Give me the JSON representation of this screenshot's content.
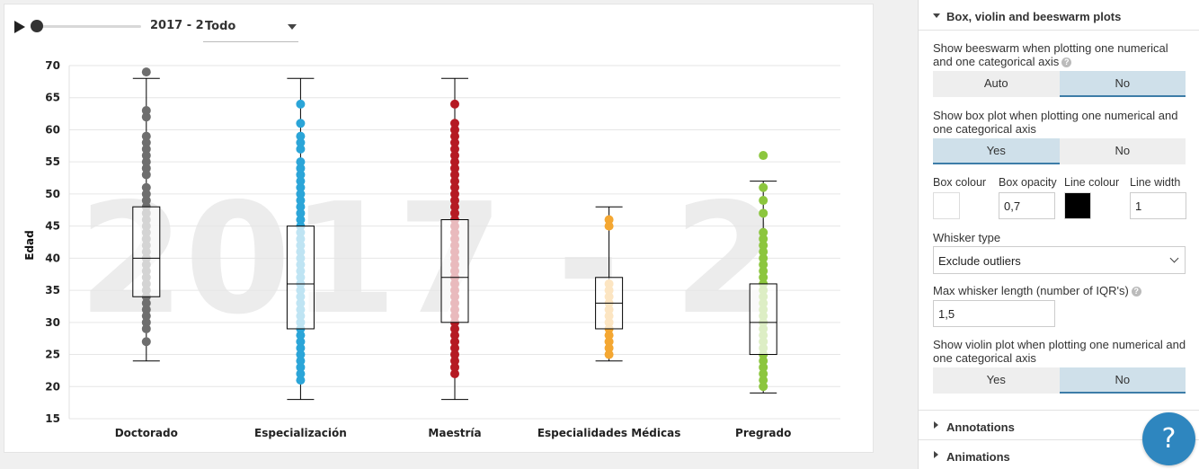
{
  "timeline": {
    "period": "2017 - 2",
    "filter_value": "Todo"
  },
  "watermark": "2017 - 2",
  "chart_data": {
    "type": "box",
    "ylabel": "Edad",
    "ylim": [
      15,
      70
    ],
    "yticks": [
      15,
      20,
      25,
      30,
      35,
      40,
      45,
      50,
      55,
      60,
      65,
      70
    ],
    "categories": [
      "Doctorado",
      "Especialización",
      "Maestría",
      "Especialidades Médicas",
      "Pregrado"
    ],
    "colors": [
      "#6e6e6e",
      "#2ba5d8",
      "#b51a23",
      "#f4a732",
      "#8cc63e"
    ],
    "boxes": [
      {
        "category": "Doctorado",
        "whisker_low": 24,
        "q1": 34,
        "median": 40,
        "q3": 48,
        "whisker_high": 68,
        "points": [
          27,
          29,
          30,
          31,
          32,
          33,
          34,
          35,
          36,
          37,
          38,
          39,
          40,
          41,
          42,
          43,
          44,
          45,
          46,
          47,
          48,
          49,
          50,
          51,
          53,
          54,
          55,
          56,
          57,
          58,
          59,
          62,
          63,
          69
        ]
      },
      {
        "category": "Especialización",
        "whisker_low": 18,
        "q1": 29,
        "median": 36,
        "q3": 45,
        "whisker_high": 68,
        "points": [
          21,
          22,
          23,
          24,
          25,
          26,
          27,
          28,
          29,
          30,
          31,
          32,
          33,
          34,
          35,
          36,
          37,
          38,
          39,
          40,
          41,
          42,
          43,
          44,
          45,
          46,
          47,
          48,
          49,
          50,
          51,
          52,
          53,
          54,
          55,
          57,
          58,
          59,
          61,
          64
        ]
      },
      {
        "category": "Maestría",
        "whisker_low": 18,
        "q1": 30,
        "median": 37,
        "q3": 46,
        "whisker_high": 68,
        "points": [
          22,
          23,
          24,
          25,
          26,
          27,
          28,
          29,
          30,
          31,
          32,
          33,
          34,
          35,
          36,
          37,
          38,
          39,
          40,
          41,
          42,
          43,
          44,
          45,
          46,
          47,
          48,
          49,
          50,
          51,
          52,
          53,
          54,
          55,
          56,
          57,
          58,
          59,
          60,
          61,
          64
        ]
      },
      {
        "category": "Especialidades Médicas",
        "whisker_low": 24,
        "q1": 29,
        "median": 33,
        "q3": 37,
        "whisker_high": 48,
        "points": [
          25,
          26,
          27,
          28,
          29,
          30,
          31,
          32,
          33,
          34,
          35,
          36,
          45,
          46
        ]
      },
      {
        "category": "Pregrado",
        "whisker_low": 19,
        "q1": 25,
        "median": 30,
        "q3": 36,
        "whisker_high": 52,
        "points": [
          20,
          21,
          22,
          23,
          24,
          25,
          26,
          27,
          28,
          29,
          30,
          31,
          32,
          33,
          34,
          35,
          36,
          37,
          38,
          39,
          40,
          41,
          42,
          43,
          44,
          47,
          49,
          51,
          56
        ]
      }
    ],
    "grid": true,
    "legend": "none"
  },
  "panel": {
    "section_title": "Box, violin and beeswarm plots",
    "beeswarm_label": "Show beeswarm when plotting one numerical and one categorical axis",
    "beeswarm_options": [
      "Auto",
      "No"
    ],
    "beeswarm_selected": "No",
    "boxplot_label": "Show box plot when plotting one numerical and one categorical axis",
    "boxplot_options": [
      "Yes",
      "No"
    ],
    "boxplot_selected": "Yes",
    "box_colour_label": "Box colour",
    "box_opacity_label": "Box opacity",
    "box_opacity_value": "0,7",
    "line_colour_label": "Line colour",
    "line_width_label": "Line width",
    "line_width_value": "1",
    "box_colour": "#ffffff",
    "line_colour": "#000000",
    "whisker_type_label": "Whisker type",
    "whisker_type_value": "Exclude outliers",
    "max_whisker_label": "Max whisker length (number of IQR's)",
    "max_whisker_value": "1,5",
    "violin_label": "Show violin plot when plotting one numerical and one categorical axis",
    "violin_options": [
      "Yes",
      "No"
    ],
    "violin_selected": "No",
    "annotations_label": "Annotations",
    "animations_label": "Animations",
    "help_glyph": "?",
    "info_glyph": "?"
  }
}
